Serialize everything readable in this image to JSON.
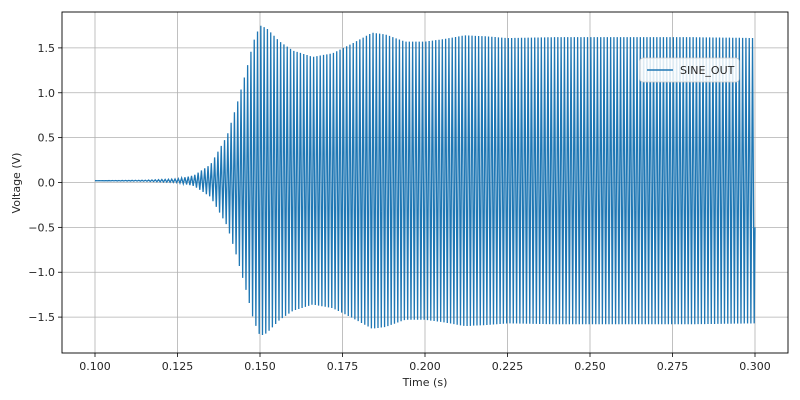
{
  "chart_data": {
    "type": "line",
    "title": "",
    "xlabel": "Time (s)",
    "ylabel": "Voltage (V)",
    "xlim": [
      0.09,
      0.31
    ],
    "ylim": [
      -1.9,
      1.9
    ],
    "grid": true,
    "legend_position": "top-right",
    "x_ticks": [
      0.1,
      0.125,
      0.15,
      0.175,
      0.2,
      0.225,
      0.25,
      0.275,
      0.3
    ],
    "x_tick_labels": [
      "0.100",
      "0.125",
      "0.150",
      "0.175",
      "0.200",
      "0.225",
      "0.250",
      "0.275",
      "0.300"
    ],
    "y_ticks": [
      -1.5,
      -1.0,
      -0.5,
      0.0,
      0.5,
      1.0,
      1.5
    ],
    "y_tick_labels": [
      "−1.5",
      "−1.0",
      "−0.5",
      "0.0",
      "0.5",
      "1.0",
      "1.5"
    ],
    "series": [
      {
        "name": "SINE_OUT",
        "color": "#1f77b4",
        "x_start": 0.1,
        "x_end": 0.3,
        "center": 0.02,
        "oscillation_frequency_hz": 1000,
        "envelope_amplitude": {
          "t": [
            0.1,
            0.115,
            0.125,
            0.13,
            0.135,
            0.14,
            0.143,
            0.146,
            0.148,
            0.15,
            0.152,
            0.156,
            0.16,
            0.166,
            0.172,
            0.178,
            0.184,
            0.188,
            0.194,
            0.2,
            0.206,
            0.212,
            0.218,
            0.225,
            0.24,
            0.26,
            0.28,
            0.3
          ],
          "v": [
            0.0,
            0.005,
            0.02,
            0.06,
            0.18,
            0.5,
            0.85,
            1.25,
            1.55,
            1.73,
            1.7,
            1.55,
            1.45,
            1.38,
            1.42,
            1.53,
            1.65,
            1.63,
            1.55,
            1.55,
            1.58,
            1.62,
            1.61,
            1.59,
            1.6,
            1.6,
            1.6,
            1.59
          ]
        }
      }
    ]
  }
}
